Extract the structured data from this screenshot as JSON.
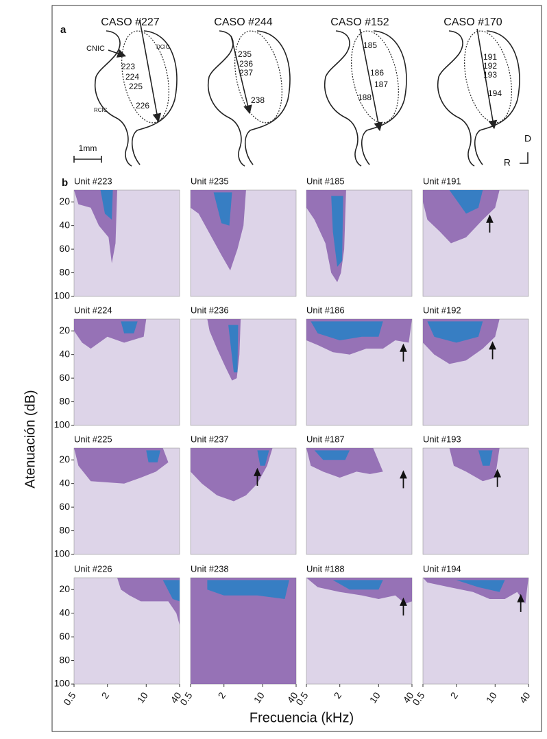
{
  "panel_a": {
    "label": "a",
    "cases": [
      {
        "title": "CASO #227",
        "units": [
          "223",
          "224",
          "225",
          "226"
        ]
      },
      {
        "title": "CASO #244",
        "units": [
          "235",
          "236",
          "237",
          "238"
        ]
      },
      {
        "title": "CASO #152",
        "units": [
          "185",
          "186",
          "187",
          "188"
        ]
      },
      {
        "title": "CASO #170",
        "units": [
          "191",
          "192",
          "193",
          "194"
        ]
      }
    ],
    "regions": [
      "CNIC",
      "DCIC",
      "RCIC"
    ],
    "scale_bar": "1mm",
    "dorsal": "D",
    "rostral": "R"
  },
  "chart_data": {
    "type": "contour",
    "label": "b",
    "ylabel": "Atenuación (dB)",
    "xlabel": "Frecuencia (kHz)",
    "log_x": true,
    "y_inverted": true,
    "xlim": [
      0.5,
      40
    ],
    "ylim": [
      10,
      100
    ],
    "xticks": [
      0.5,
      2,
      10,
      40
    ],
    "yticks": [
      20,
      40,
      60,
      80,
      100
    ],
    "background_color": "#ddd4e8",
    "area_color": "#7d52a6",
    "core_color": "#2c7fc4",
    "arrow_color": "#111111",
    "panels": [
      {
        "title": "Unit #223",
        "area": [
          [
            0.5,
            10
          ],
          [
            3,
            10
          ],
          [
            2.8,
            55
          ],
          [
            2.4,
            72
          ],
          [
            2.1,
            50
          ],
          [
            1.4,
            40
          ],
          [
            1,
            25
          ],
          [
            0.6,
            22
          ]
        ],
        "core": [
          [
            1.5,
            10
          ],
          [
            2.5,
            10
          ],
          [
            2.4,
            35
          ],
          [
            1.8,
            30
          ]
        ],
        "arrow": null
      },
      {
        "title": "Unit #235",
        "area": [
          [
            0.5,
            10
          ],
          [
            5,
            10
          ],
          [
            4.5,
            40
          ],
          [
            3.5,
            60
          ],
          [
            2.6,
            78
          ],
          [
            1.8,
            65
          ],
          [
            1.2,
            50
          ],
          [
            0.7,
            30
          ],
          [
            0.5,
            25
          ]
        ],
        "core": [
          [
            1.3,
            12
          ],
          [
            2.8,
            12
          ],
          [
            2.5,
            40
          ],
          [
            1.8,
            38
          ]
        ],
        "arrow": null
      },
      {
        "title": "Unit #185",
        "area": [
          [
            0.5,
            10
          ],
          [
            2.6,
            10
          ],
          [
            2.4,
            60
          ],
          [
            2.1,
            80
          ],
          [
            1.8,
            88
          ],
          [
            1.4,
            80
          ],
          [
            1.1,
            55
          ],
          [
            0.7,
            35
          ],
          [
            0.5,
            25
          ]
        ],
        "core": [
          [
            1.4,
            15
          ],
          [
            2.3,
            15
          ],
          [
            2.2,
            70
          ],
          [
            1.8,
            75
          ],
          [
            1.5,
            45
          ]
        ],
        "arrow": null
      },
      {
        "title": "Unit #191",
        "area": [
          [
            0.5,
            10
          ],
          [
            12,
            10
          ],
          [
            10,
            25
          ],
          [
            6,
            35
          ],
          [
            3,
            50
          ],
          [
            1.6,
            55
          ],
          [
            1,
            45
          ],
          [
            0.6,
            35
          ],
          [
            0.5,
            20
          ]
        ],
        "core": [
          [
            1.5,
            10
          ],
          [
            6,
            10
          ],
          [
            5,
            25
          ],
          [
            3,
            30
          ]
        ],
        "arrow": [
          8,
          32
        ]
      },
      {
        "title": "Unit #224",
        "area": [
          [
            0.5,
            10
          ],
          [
            10,
            10
          ],
          [
            9,
            25
          ],
          [
            4,
            30
          ],
          [
            2,
            25
          ],
          [
            1,
            35
          ],
          [
            0.7,
            30
          ],
          [
            0.5,
            20
          ]
        ],
        "core": [
          [
            3.5,
            12
          ],
          [
            7,
            12
          ],
          [
            6,
            22
          ],
          [
            4,
            22
          ]
        ],
        "arrow": null
      },
      {
        "title": "Unit #236",
        "area": [
          [
            1,
            10
          ],
          [
            4,
            10
          ],
          [
            3.8,
            40
          ],
          [
            3.4,
            60
          ],
          [
            2.8,
            62
          ],
          [
            2.1,
            50
          ],
          [
            1.5,
            35
          ],
          [
            1.1,
            20
          ]
        ],
        "core": [
          [
            2.4,
            15
          ],
          [
            3.6,
            15
          ],
          [
            3.5,
            55
          ],
          [
            3,
            55
          ]
        ],
        "arrow": null
      },
      {
        "title": "Unit #186",
        "area": [
          [
            0.5,
            10
          ],
          [
            40,
            10
          ],
          [
            35,
            30
          ],
          [
            20,
            28
          ],
          [
            12,
            35
          ],
          [
            6,
            35
          ],
          [
            3,
            40
          ],
          [
            1.5,
            38
          ],
          [
            0.8,
            32
          ],
          [
            0.5,
            28
          ]
        ],
        "core": [
          [
            0.6,
            12
          ],
          [
            12,
            12
          ],
          [
            10,
            25
          ],
          [
            5,
            25
          ],
          [
            2,
            28
          ],
          [
            0.8,
            22
          ]
        ],
        "arrow": [
          28,
          32
        ]
      },
      {
        "title": "Unit #192",
        "area": [
          [
            0.5,
            10
          ],
          [
            12,
            10
          ],
          [
            10,
            25
          ],
          [
            6,
            35
          ],
          [
            3,
            45
          ],
          [
            1.5,
            48
          ],
          [
            0.8,
            40
          ],
          [
            0.5,
            30
          ]
        ],
        "core": [
          [
            0.6,
            12
          ],
          [
            6,
            12
          ],
          [
            5,
            25
          ],
          [
            2,
            30
          ],
          [
            0.8,
            25
          ]
        ],
        "arrow": [
          9,
          30
        ]
      },
      {
        "title": "Unit #225",
        "area": [
          [
            0.5,
            10
          ],
          [
            20,
            10
          ],
          [
            25,
            22
          ],
          [
            15,
            30
          ],
          [
            8,
            35
          ],
          [
            4,
            40
          ],
          [
            1,
            38
          ],
          [
            0.6,
            25
          ]
        ],
        "core": [
          [
            10,
            12
          ],
          [
            18,
            12
          ],
          [
            16,
            22
          ],
          [
            11,
            22
          ]
        ],
        "arrow": null
      },
      {
        "title": "Unit #237",
        "area": [
          [
            0.5,
            10
          ],
          [
            15,
            10
          ],
          [
            12,
            25
          ],
          [
            8,
            40
          ],
          [
            5,
            50
          ],
          [
            3,
            55
          ],
          [
            1.5,
            50
          ],
          [
            0.8,
            40
          ],
          [
            0.5,
            30
          ]
        ],
        "core": [
          [
            8,
            12
          ],
          [
            13,
            12
          ],
          [
            11,
            25
          ],
          [
            9,
            25
          ]
        ],
        "arrow": [
          8,
          28
        ]
      },
      {
        "title": "Unit #187",
        "area": [
          [
            0.5,
            10
          ],
          [
            8,
            10
          ],
          [
            12,
            30
          ],
          [
            7,
            32
          ],
          [
            4,
            30
          ],
          [
            2,
            35
          ],
          [
            1,
            30
          ],
          [
            0.6,
            25
          ]
        ],
        "core": [
          [
            0.7,
            12
          ],
          [
            3,
            12
          ],
          [
            2.5,
            20
          ],
          [
            1,
            20
          ]
        ],
        "arrow": [
          28,
          30
        ]
      },
      {
        "title": "Unit #193",
        "area": [
          [
            1.5,
            10
          ],
          [
            12,
            10
          ],
          [
            10,
            35
          ],
          [
            6,
            38
          ],
          [
            3,
            30
          ],
          [
            1.8,
            25
          ]
        ],
        "core": [
          [
            5,
            12
          ],
          [
            9,
            12
          ],
          [
            8,
            25
          ],
          [
            6,
            25
          ]
        ],
        "arrow": [
          11,
          29
        ]
      },
      {
        "title": "Unit #226",
        "area": [
          [
            3,
            10
          ],
          [
            40,
            10
          ],
          [
            40,
            50
          ],
          [
            35,
            40
          ],
          [
            25,
            30
          ],
          [
            15,
            30
          ],
          [
            8,
            30
          ],
          [
            5,
            25
          ],
          [
            3.5,
            20
          ]
        ],
        "core": [
          [
            20,
            12
          ],
          [
            40,
            12
          ],
          [
            40,
            30
          ],
          [
            30,
            28
          ]
        ],
        "arrow": null
      },
      {
        "title": "Unit #238",
        "area": [
          [
            0.5,
            10
          ],
          [
            40,
            10
          ],
          [
            40,
            100
          ],
          [
            0.5,
            100
          ]
        ],
        "core": [
          [
            1,
            12
          ],
          [
            30,
            12
          ],
          [
            25,
            28
          ],
          [
            8,
            25
          ],
          [
            2,
            25
          ],
          [
            1,
            20
          ]
        ],
        "arrow": null
      },
      {
        "title": "Unit #188",
        "area": [
          [
            0.5,
            10
          ],
          [
            40,
            10
          ],
          [
            40,
            30
          ],
          [
            30,
            32
          ],
          [
            20,
            25
          ],
          [
            10,
            28
          ],
          [
            5,
            25
          ],
          [
            2,
            22
          ],
          [
            0.8,
            18
          ]
        ],
        "core": [
          [
            1.5,
            12
          ],
          [
            12,
            12
          ],
          [
            10,
            20
          ],
          [
            3,
            20
          ]
        ],
        "arrow": [
          28,
          28
        ]
      },
      {
        "title": "Unit #194",
        "area": [
          [
            0.5,
            10
          ],
          [
            40,
            10
          ],
          [
            35,
            32
          ],
          [
            25,
            22
          ],
          [
            15,
            28
          ],
          [
            8,
            28
          ],
          [
            4,
            22
          ],
          [
            1.5,
            18
          ],
          [
            0.6,
            14
          ]
        ],
        "core": [
          [
            2,
            12
          ],
          [
            15,
            12
          ],
          [
            12,
            22
          ],
          [
            5,
            18
          ]
        ],
        "arrow": [
          29,
          25
        ]
      }
    ]
  }
}
